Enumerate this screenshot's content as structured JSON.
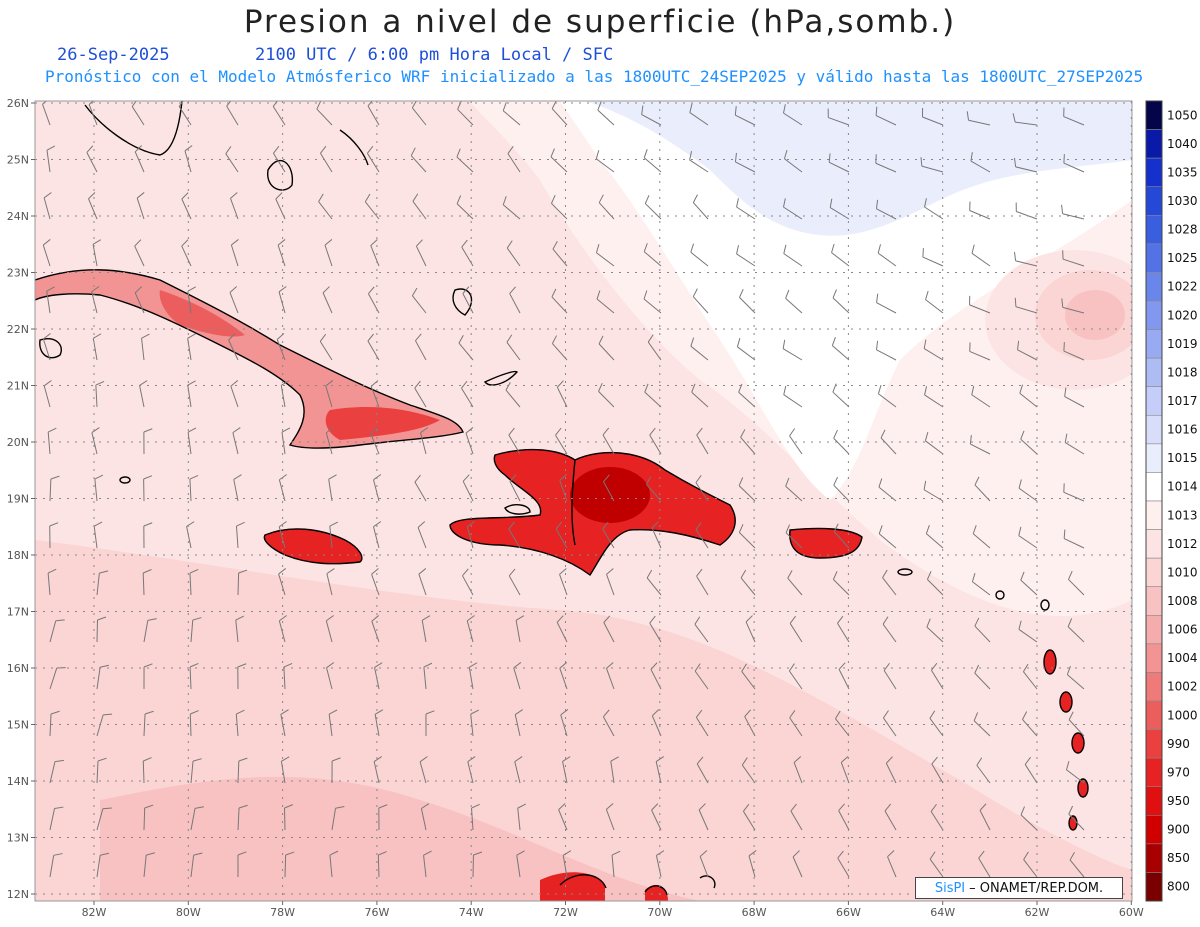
{
  "header": {
    "title": "Presion a nivel de superficie (hPa,somb.)",
    "date": "26-Sep-2025",
    "time": "2100 UTC / 6:00 pm Hora Local / SFC",
    "model_line": "Pronóstico con el Modelo Atmósferico WRF inicializado a las 1800UTC_24SEP2025 y válido hasta las  1800UTC_27SEP2025"
  },
  "axes": {
    "lon_labels": [
      "82W",
      "80W",
      "78W",
      "76W",
      "74W",
      "72W",
      "70W",
      "68W",
      "66W",
      "64W",
      "62W",
      "60W"
    ],
    "lat_labels": [
      "26N",
      "25N",
      "24N",
      "23N",
      "22N",
      "21N",
      "20N",
      "19N",
      "18N",
      "17N",
      "16N",
      "15N",
      "14N",
      "13N",
      "12N"
    ]
  },
  "colorbar": {
    "levels": [
      "1050",
      "1040",
      "1035",
      "1030",
      "1028",
      "1025",
      "1022",
      "1020",
      "1019",
      "1018",
      "1017",
      "1016",
      "1015",
      "1014",
      "1013",
      "1012",
      "1010",
      "1008",
      "1006",
      "1004",
      "1002",
      "1000",
      "990",
      "970",
      "950",
      "900",
      "850",
      "800"
    ],
    "colors": [
      "#04044a",
      "#0a1aa8",
      "#1530cc",
      "#2448d8",
      "#3a5ee0",
      "#5272e6",
      "#6a86ea",
      "#8298ee",
      "#98aaf2",
      "#aebcf4",
      "#c4cef8",
      "#d8defa",
      "#eaeefc",
      "#ffffff",
      "#fff0f0",
      "#fde4e4",
      "#fbd4d4",
      "#f8c2c2",
      "#f5acac",
      "#f29494",
      "#ef7a7a",
      "#ec5e5e",
      "#ea4040",
      "#e62222",
      "#e01010",
      "#d00000",
      "#a80000",
      "#7a0000"
    ]
  },
  "credit": {
    "logo": "SisPI",
    "text": "– ONAMET/REP.DOM."
  }
}
